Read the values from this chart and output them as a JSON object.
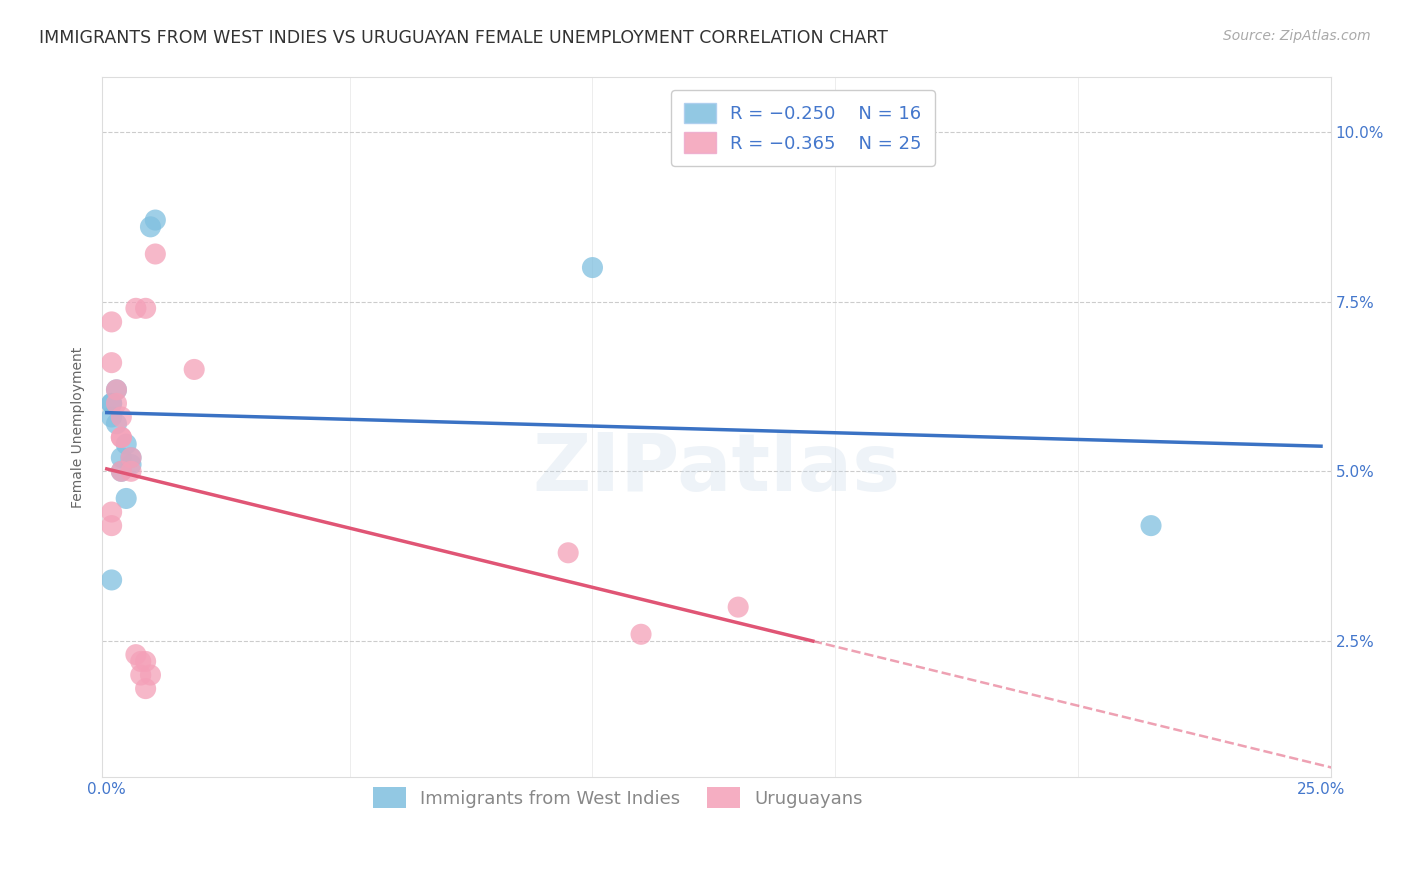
{
  "title": "IMMIGRANTS FROM WEST INDIES VS URUGUAYAN FEMALE UNEMPLOYMENT CORRELATION CHART",
  "source": "Source: ZipAtlas.com",
  "ylabel": "Female Unemployment",
  "xlim": [
    -0.001,
    0.252
  ],
  "ylim": [
    0.005,
    0.108
  ],
  "background_color": "#ffffff",
  "blue_color": "#7fbfdf",
  "pink_color": "#f4a0b8",
  "blue_line_color": "#3a72c4",
  "pink_line_color": "#e05575",
  "legend_R_blue": "R = −0.250",
  "legend_N_blue": "N = 16",
  "legend_R_pink": "R = −0.365",
  "legend_N_pink": "N = 25",
  "label_blue": "Immigrants from West Indies",
  "label_pink": "Uruguayans",
  "blue_points_x": [
    0.001,
    0.009,
    0.01,
    0.001,
    0.001,
    0.002,
    0.002,
    0.003,
    0.003,
    0.004,
    0.005,
    0.005,
    0.004,
    0.001,
    0.1,
    0.215
  ],
  "blue_points_y": [
    0.06,
    0.086,
    0.087,
    0.06,
    0.058,
    0.062,
    0.057,
    0.052,
    0.05,
    0.054,
    0.052,
    0.051,
    0.046,
    0.034,
    0.08,
    0.042
  ],
  "pink_points_x": [
    0.01,
    0.006,
    0.008,
    0.001,
    0.001,
    0.002,
    0.002,
    0.003,
    0.003,
    0.003,
    0.003,
    0.005,
    0.005,
    0.018,
    0.001,
    0.001,
    0.006,
    0.007,
    0.007,
    0.008,
    0.008,
    0.009,
    0.095,
    0.13,
    0.11
  ],
  "pink_points_y": [
    0.082,
    0.074,
    0.074,
    0.072,
    0.066,
    0.062,
    0.06,
    0.055,
    0.055,
    0.058,
    0.05,
    0.052,
    0.05,
    0.065,
    0.044,
    0.042,
    0.023,
    0.022,
    0.02,
    0.022,
    0.018,
    0.02,
    0.038,
    0.03,
    0.026
  ],
  "watermark": "ZIPatlas",
  "title_fontsize": 12.5,
  "axis_label_fontsize": 10,
  "tick_fontsize": 11,
  "legend_fontsize": 13,
  "source_fontsize": 10,
  "grid_color": "#cccccc",
  "tick_color": "#4477cc",
  "grid_yticks": [
    0.025,
    0.05,
    0.075,
    0.1
  ],
  "grid_xticks": [
    0.0,
    0.05,
    0.1,
    0.15,
    0.2,
    0.25
  ]
}
